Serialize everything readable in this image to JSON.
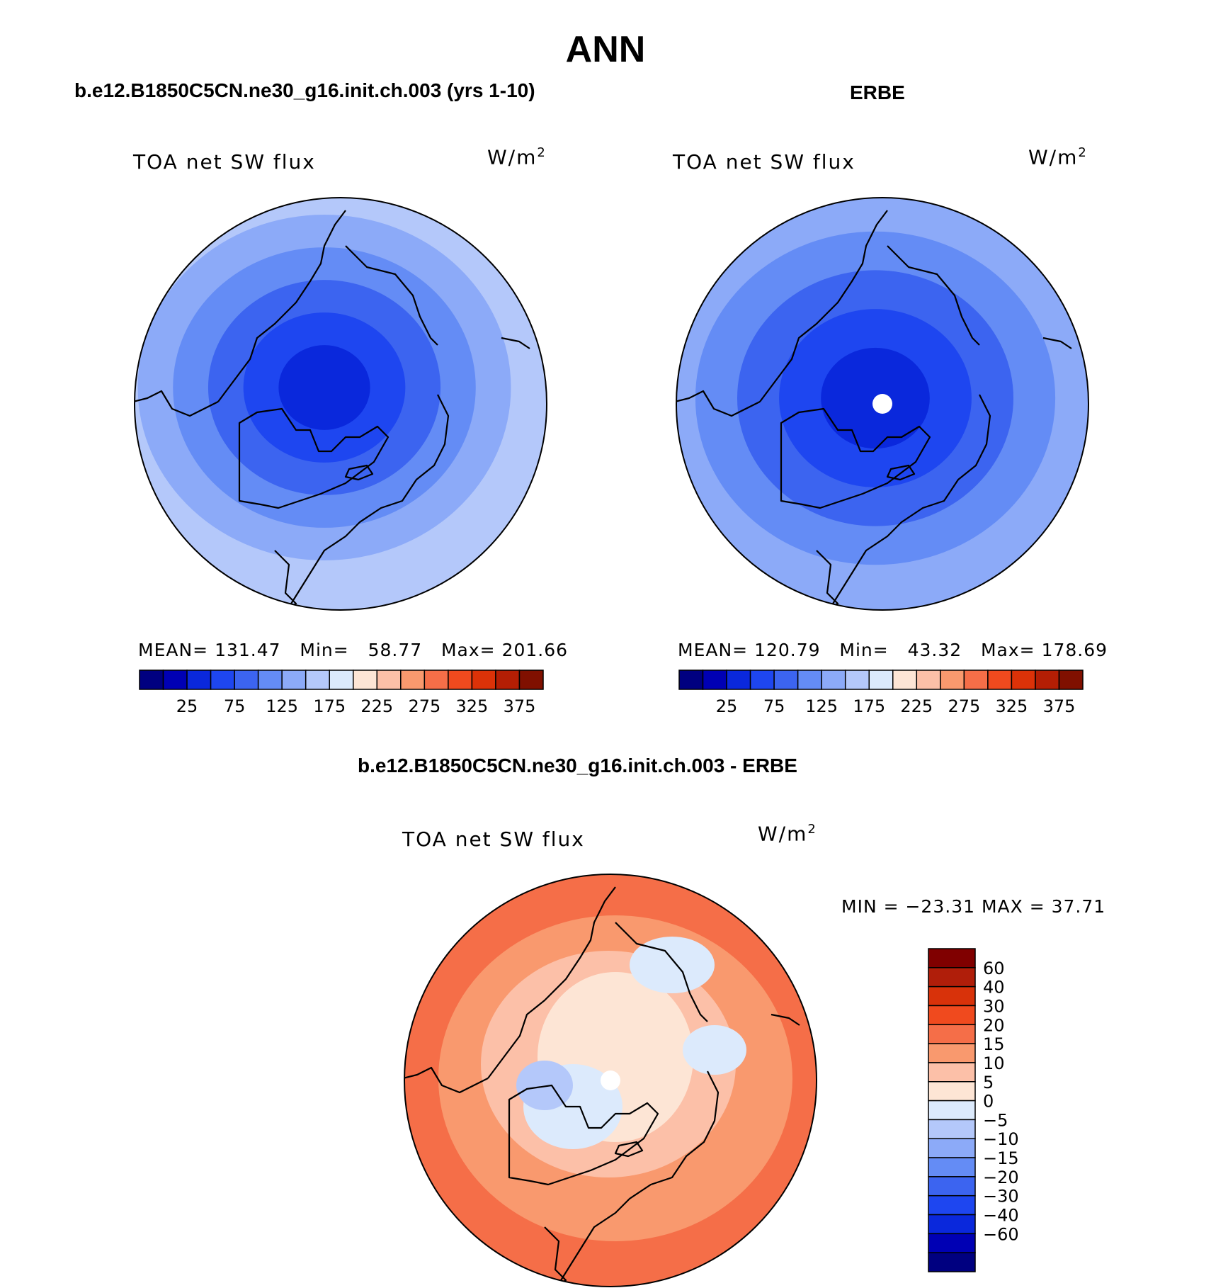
{
  "title": "ANN",
  "top_panels": [
    {
      "subtitle": "b.e12.B1850C5CN.ne30_g16.init.ch.003 (yrs 1-10)",
      "variable": "TOA net SW flux",
      "units": "W/m",
      "units_exp": "2",
      "mean_label": "MEAN=",
      "mean": "131.47",
      "min_label": "Min=",
      "min": "58.77",
      "max_label": "Max=",
      "max": "201.66"
    },
    {
      "subtitle": "ERBE",
      "variable": "TOA net SW flux",
      "units": "W/m",
      "units_exp": "2",
      "mean_label": "MEAN=",
      "mean": "120.79",
      "min_label": "Min=",
      "min": "43.32",
      "max_label": "Max=",
      "max": "178.69"
    }
  ],
  "abs_colorbar": {
    "colors": [
      "#000080",
      "#0000b4",
      "#0a28dc",
      "#1e46f0",
      "#3c64f0",
      "#648cf5",
      "#8caaf8",
      "#b4c8fa",
      "#dceafc",
      "#fde5d5",
      "#fcc0a8",
      "#f9996e",
      "#f56e48",
      "#f04a1e",
      "#dc3208",
      "#b41e04",
      "#801000"
    ],
    "tick_labels": [
      "25",
      "75",
      "125",
      "175",
      "225",
      "275",
      "325",
      "375"
    ]
  },
  "diff_panel": {
    "subtitle": "b.e12.B1850C5CN.ne30_g16.init.ch.003 - ERBE",
    "variable": "TOA net SW flux",
    "units": "W/m",
    "units_exp": "2",
    "minmax_text": "MIN = −23.31 MAX =   37.71"
  },
  "diff_colorbar": {
    "colors_top_to_bottom": [
      "#800000",
      "#b01e0a",
      "#d8320a",
      "#f04a1e",
      "#f56e48",
      "#f9996e",
      "#fcc0a8",
      "#fde5d5",
      "#dceafc",
      "#b4c8fa",
      "#8caaf8",
      "#648cf5",
      "#3c64f0",
      "#1e46f0",
      "#0a28dc",
      "#0000b4",
      "#000080"
    ],
    "tick_labels_top_to_bottom": [
      "60",
      "40",
      "30",
      "20",
      "15",
      "10",
      "5",
      "0",
      "−5",
      "−10",
      "−15",
      "−20",
      "−30",
      "−40",
      "−60"
    ]
  },
  "map_fills": {
    "model": [
      "#b4c8fa",
      "#8caaf8",
      "#648cf5",
      "#3c64f0",
      "#1e46f0",
      "#0a28dc"
    ],
    "obs": [
      "#8caaf8",
      "#648cf5",
      "#3c64f0",
      "#1e46f0",
      "#0a28dc"
    ],
    "diff": [
      "#f56e48",
      "#f9996e",
      "#fcc0a8",
      "#fde5d5",
      "#dceafc",
      "#b4c8fa"
    ]
  }
}
